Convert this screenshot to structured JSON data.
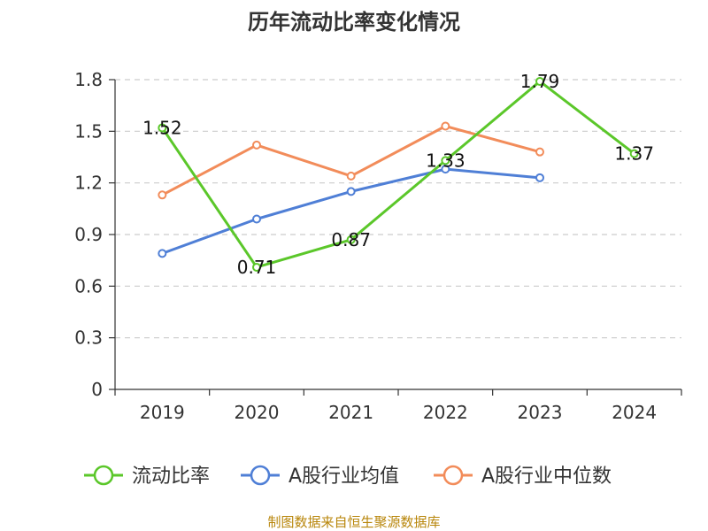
{
  "chart_data": {
    "type": "line",
    "title": "历年流动比率变化情况",
    "xlabel": "",
    "ylabel": "",
    "categories": [
      "2019",
      "2020",
      "2021",
      "2022",
      "2023",
      "2024"
    ],
    "ylim": [
      0,
      1.8
    ],
    "yticks": [
      "0",
      "0.3",
      "0.6",
      "0.9",
      "1.2",
      "1.5",
      "1.8"
    ],
    "grid": true,
    "legend_position": "bottom",
    "series": [
      {
        "name": "流动比率",
        "color": "#5bc72a",
        "values": [
          1.52,
          0.71,
          0.87,
          1.33,
          1.79,
          1.37
        ],
        "labels": [
          "1.52",
          "0.71",
          "0.87",
          "1.33",
          "1.79",
          "1.37"
        ]
      },
      {
        "name": "A股行业均值",
        "color": "#4f7fd6",
        "values": [
          0.79,
          0.99,
          1.15,
          1.28,
          1.23,
          null
        ]
      },
      {
        "name": "A股行业中位数",
        "color": "#f28c5a",
        "values": [
          1.13,
          1.42,
          1.24,
          1.53,
          1.38,
          null
        ]
      }
    ]
  },
  "source_note": "制图数据来自恒生聚源数据库"
}
